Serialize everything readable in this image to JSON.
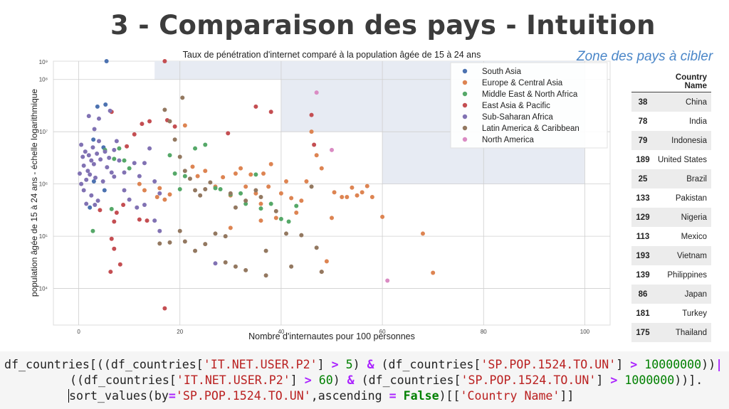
{
  "slide": {
    "title": "3 - Comparaison des pays - Intuition",
    "zone_label": "Zone des pays à cibler"
  },
  "chart_data": {
    "type": "scatter",
    "title": "Taux de pénétration d'internet comparé à la population âgée de 15 à 24 ans",
    "xlabel": "Nombre d'internautes pour 100 personnes",
    "ylabel": "population âgée de 15 à 24 ans - échelle logarithmique",
    "xlim": [
      -5,
      105
    ],
    "ylim_log10": [
      3.3,
      8.35
    ],
    "y_scale": "log",
    "x_ticks": [
      {
        "value": 0,
        "label": "0"
      },
      {
        "value": 20,
        "label": "20"
      },
      {
        "value": 40,
        "label": "40"
      },
      {
        "value": 60,
        "label": "60"
      },
      {
        "value": 80,
        "label": "80"
      },
      {
        "value": 100,
        "label": "100"
      }
    ],
    "y_ticks": [
      {
        "log": 4,
        "label": "10⁴"
      },
      {
        "log": 5,
        "label": "10⁵"
      },
      {
        "log": 6,
        "label": "10⁶"
      },
      {
        "log": 7,
        "label": "10⁷"
      },
      {
        "log": 8,
        "label": "10⁸"
      },
      {
        "log": 9,
        "label": "10⁹"
      }
    ],
    "grid": true,
    "legend_position": "top-right",
    "highlight_zones": [
      {
        "x": [
          15,
          100
        ],
        "y_log": [
          8.0,
          9.0
        ]
      },
      {
        "x": [
          40,
          100
        ],
        "y_log": [
          7.0,
          8.0
        ]
      },
      {
        "x": [
          60,
          100
        ],
        "y_log": [
          6.0,
          7.0
        ]
      }
    ],
    "series": [
      {
        "name": "South Asia",
        "color": "#4c72b0",
        "points": [
          [
            5.5,
            8.35
          ],
          [
            3.7,
            7.48
          ],
          [
            5.3,
            7.52
          ],
          [
            2.9,
            6.85
          ],
          [
            4.9,
            6.7
          ],
          [
            3.0,
            6.05
          ],
          [
            5.1,
            5.88
          ],
          [
            2.2,
            5.55
          ]
        ]
      },
      {
        "name": "Europe & Central Asia",
        "color": "#dd8452",
        "points": [
          [
            21,
            7.12
          ],
          [
            22.5,
            6.33
          ],
          [
            23.5,
            6.15
          ],
          [
            25,
            6.25
          ],
          [
            27,
            5.95
          ],
          [
            28.5,
            6.13
          ],
          [
            30,
            5.78
          ],
          [
            31,
            6.2
          ],
          [
            32,
            6.3
          ],
          [
            33,
            5.95
          ],
          [
            34,
            6.18
          ],
          [
            35,
            5.82
          ],
          [
            36,
            5.62
          ],
          [
            36.5,
            6.2
          ],
          [
            37.5,
            5.95
          ],
          [
            38,
            6.38
          ],
          [
            39,
            5.35
          ],
          [
            40,
            5.82
          ],
          [
            41,
            6.05
          ],
          [
            42,
            5.73
          ],
          [
            43,
            5.45
          ],
          [
            44,
            5.68
          ],
          [
            45,
            6.05
          ],
          [
            46,
            7.0
          ],
          [
            47,
            6.55
          ],
          [
            48,
            6.3
          ],
          [
            50,
            5.35
          ],
          [
            50.5,
            5.84
          ],
          [
            52,
            5.75
          ],
          [
            53,
            5.75
          ],
          [
            54,
            5.93
          ],
          [
            55,
            5.78
          ],
          [
            56,
            5.84
          ],
          [
            57,
            5.96
          ],
          [
            58,
            5.75
          ],
          [
            60,
            5.37
          ],
          [
            68,
            5.05
          ],
          [
            70,
            4.3
          ],
          [
            49,
            4.52
          ],
          [
            48,
            4.32
          ],
          [
            30,
            5.16
          ],
          [
            36,
            5.3
          ],
          [
            12,
            6.0
          ],
          [
            13,
            5.88
          ],
          [
            15.5,
            5.75
          ],
          [
            16,
            5.92
          ],
          [
            17,
            5.7
          ],
          [
            18,
            5.8
          ]
        ]
      },
      {
        "name": "Middle East & North Africa",
        "color": "#55a868",
        "points": [
          [
            5.2,
            6.65
          ],
          [
            7.0,
            6.48
          ],
          [
            8.0,
            6.68
          ],
          [
            9.0,
            6.45
          ],
          [
            10,
            6.3
          ],
          [
            18,
            6.55
          ],
          [
            19,
            6.2
          ],
          [
            20,
            5.9
          ],
          [
            21,
            6.15
          ],
          [
            23,
            6.68
          ],
          [
            25,
            6.75
          ],
          [
            27,
            5.92
          ],
          [
            28,
            5.9
          ],
          [
            30,
            5.8
          ],
          [
            32,
            5.82
          ],
          [
            33,
            5.62
          ],
          [
            35,
            6.18
          ],
          [
            36,
            5.53
          ],
          [
            38,
            5.62
          ],
          [
            40,
            5.33
          ],
          [
            41.5,
            5.28
          ],
          [
            43,
            5.58
          ],
          [
            2.8,
            5.1
          ],
          [
            6.5,
            5.52
          ]
        ]
      },
      {
        "name": "East Asia & Pacific",
        "color": "#c44e52",
        "points": [
          [
            17,
            8.35
          ],
          [
            6.5,
            7.38
          ],
          [
            9.5,
            6.72
          ],
          [
            11,
            6.95
          ],
          [
            12.5,
            7.15
          ],
          [
            14,
            7.2
          ],
          [
            17.5,
            7.22
          ],
          [
            19,
            7.1
          ],
          [
            29.5,
            6.97
          ],
          [
            35,
            7.48
          ],
          [
            38,
            7.38
          ],
          [
            46,
            7.32
          ],
          [
            46.5,
            6.75
          ],
          [
            4.2,
            5.5
          ],
          [
            7,
            5.28
          ],
          [
            7.5,
            5.45
          ],
          [
            8.8,
            5.6
          ],
          [
            12,
            5.32
          ],
          [
            13.5,
            5.3
          ],
          [
            6.5,
            4.95
          ],
          [
            7.0,
            4.76
          ],
          [
            8.2,
            4.46
          ],
          [
            6.3,
            4.32
          ],
          [
            17,
            3.62
          ]
        ]
      },
      {
        "name": "Sub-Saharan Africa",
        "color": "#8172b3",
        "points": [
          [
            0.5,
            6.75
          ],
          [
            0.8,
            6.52
          ],
          [
            1.0,
            6.35
          ],
          [
            1.3,
            6.62
          ],
          [
            1.5,
            6.08
          ],
          [
            1.8,
            6.25
          ],
          [
            2.0,
            6.55
          ],
          [
            2.2,
            6.18
          ],
          [
            2.5,
            6.45
          ],
          [
            2.8,
            6.7
          ],
          [
            3.0,
            6.38
          ],
          [
            3.3,
            6.12
          ],
          [
            3.6,
            6.58
          ],
          [
            4.0,
            6.82
          ],
          [
            4.3,
            6.47
          ],
          [
            4.8,
            6.05
          ],
          [
            5.2,
            6.62
          ],
          [
            5.6,
            6.32
          ],
          [
            6.0,
            6.5
          ],
          [
            6.5,
            6.22
          ],
          [
            7.0,
            6.14
          ],
          [
            7.5,
            6.82
          ],
          [
            8.0,
            6.45
          ],
          [
            9.0,
            6.22
          ],
          [
            11,
            6.4
          ],
          [
            12,
            6.15
          ],
          [
            13,
            6.4
          ],
          [
            14,
            6.68
          ],
          [
            15,
            6.05
          ],
          [
            16,
            5.82
          ],
          [
            3.1,
            7.05
          ],
          [
            4.0,
            7.25
          ],
          [
            6.2,
            7.4
          ],
          [
            7.0,
            6.65
          ],
          [
            1.0,
            5.88
          ],
          [
            1.5,
            5.62
          ],
          [
            2.5,
            5.78
          ],
          [
            3.2,
            5.6
          ],
          [
            3.8,
            5.68
          ],
          [
            9.0,
            5.88
          ],
          [
            10,
            5.7
          ],
          [
            11.5,
            5.55
          ],
          [
            13,
            5.6
          ],
          [
            15,
            5.3
          ],
          [
            16,
            5.1
          ],
          [
            2.0,
            7.3
          ],
          [
            0.5,
            6.0
          ],
          [
            0.2,
            6.2
          ],
          [
            27,
            4.48
          ]
        ]
      },
      {
        "name": "Latin America & Caribbean",
        "color": "#937860",
        "points": [
          [
            17,
            7.42
          ],
          [
            18,
            7.2
          ],
          [
            19,
            6.85
          ],
          [
            20,
            6.52
          ],
          [
            20.5,
            7.65
          ],
          [
            21,
            6.25
          ],
          [
            22,
            6.1
          ],
          [
            23,
            5.88
          ],
          [
            24,
            5.78
          ],
          [
            25,
            5.9
          ],
          [
            26,
            6.03
          ],
          [
            30,
            5.82
          ],
          [
            31,
            5.55
          ],
          [
            33,
            5.68
          ],
          [
            35,
            5.88
          ],
          [
            36,
            5.75
          ],
          [
            37,
            4.72
          ],
          [
            39,
            5.48
          ],
          [
            41,
            5.05
          ],
          [
            42,
            4.42
          ],
          [
            44,
            5.02
          ],
          [
            46,
            5.95
          ],
          [
            47,
            4.78
          ],
          [
            48,
            4.32
          ],
          [
            29,
            4.5
          ],
          [
            31,
            4.42
          ],
          [
            33,
            4.35
          ],
          [
            37,
            4.25
          ],
          [
            20,
            5.1
          ],
          [
            21,
            4.9
          ],
          [
            23,
            4.72
          ],
          [
            25,
            4.85
          ],
          [
            27,
            5.05
          ],
          [
            29,
            5.0
          ],
          [
            16,
            4.86
          ],
          [
            18,
            4.88
          ]
        ]
      },
      {
        "name": "North America",
        "color": "#da8bc3",
        "points": [
          [
            47,
            7.75
          ],
          [
            50,
            6.65
          ],
          [
            61,
            4.15
          ]
        ]
      }
    ]
  },
  "country_table": {
    "header": "Country Name",
    "rows": [
      {
        "index": "38",
        "name": "China"
      },
      {
        "index": "78",
        "name": "India"
      },
      {
        "index": "79",
        "name": "Indonesia"
      },
      {
        "index": "189",
        "name": "United States"
      },
      {
        "index": "25",
        "name": "Brazil"
      },
      {
        "index": "133",
        "name": "Pakistan"
      },
      {
        "index": "129",
        "name": "Nigeria"
      },
      {
        "index": "113",
        "name": "Mexico"
      },
      {
        "index": "193",
        "name": "Vietnam"
      },
      {
        "index": "139",
        "name": "Philippines"
      },
      {
        "index": "86",
        "name": "Japan"
      },
      {
        "index": "181",
        "name": "Turkey"
      },
      {
        "index": "175",
        "name": "Thailand"
      }
    ]
  },
  "code": {
    "line1": [
      {
        "t": "df_countries[((df_countries[",
        "c": ""
      },
      {
        "t": "'IT.NET.USER.P2'",
        "c": "c-str"
      },
      {
        "t": "] ",
        "c": ""
      },
      {
        "t": ">",
        "c": "c-op"
      },
      {
        "t": " ",
        "c": ""
      },
      {
        "t": "5",
        "c": "c-num"
      },
      {
        "t": ") ",
        "c": ""
      },
      {
        "t": "&",
        "c": "c-op"
      },
      {
        "t": " (df_countries[",
        "c": ""
      },
      {
        "t": "'SP.POP.1524.TO.UN'",
        "c": "c-str"
      },
      {
        "t": "] ",
        "c": ""
      },
      {
        "t": ">",
        "c": "c-op"
      },
      {
        "t": " ",
        "c": ""
      },
      {
        "t": "10000000",
        "c": "c-num"
      },
      {
        "t": "))",
        "c": ""
      },
      {
        "t": "|",
        "c": "c-op"
      }
    ],
    "line2": [
      {
        "t": "((df_countries[",
        "c": ""
      },
      {
        "t": "'IT.NET.USER.P2'",
        "c": "c-str"
      },
      {
        "t": "] ",
        "c": ""
      },
      {
        "t": ">",
        "c": "c-op"
      },
      {
        "t": " ",
        "c": ""
      },
      {
        "t": "60",
        "c": "c-num"
      },
      {
        "t": ") ",
        "c": ""
      },
      {
        "t": "&",
        "c": "c-op"
      },
      {
        "t": " (df_countries[",
        "c": ""
      },
      {
        "t": "'SP.POP.1524.TO.UN'",
        "c": "c-str"
      },
      {
        "t": "] ",
        "c": ""
      },
      {
        "t": ">",
        "c": "c-op"
      },
      {
        "t": " ",
        "c": ""
      },
      {
        "t": "1000000",
        "c": "c-num"
      },
      {
        "t": "))].",
        "c": ""
      }
    ],
    "line3": [
      {
        "t": "sort_values(by",
        "c": ""
      },
      {
        "t": "=",
        "c": "c-op"
      },
      {
        "t": "'SP.POP.1524.TO.UN'",
        "c": "c-str"
      },
      {
        "t": ",ascending ",
        "c": ""
      },
      {
        "t": "=",
        "c": "c-op"
      },
      {
        "t": " ",
        "c": ""
      },
      {
        "t": "False",
        "c": "c-kw"
      },
      {
        "t": ")[[",
        "c": ""
      },
      {
        "t": "'Country Name'",
        "c": "c-str"
      },
      {
        "t": "]]",
        "c": ""
      }
    ]
  }
}
